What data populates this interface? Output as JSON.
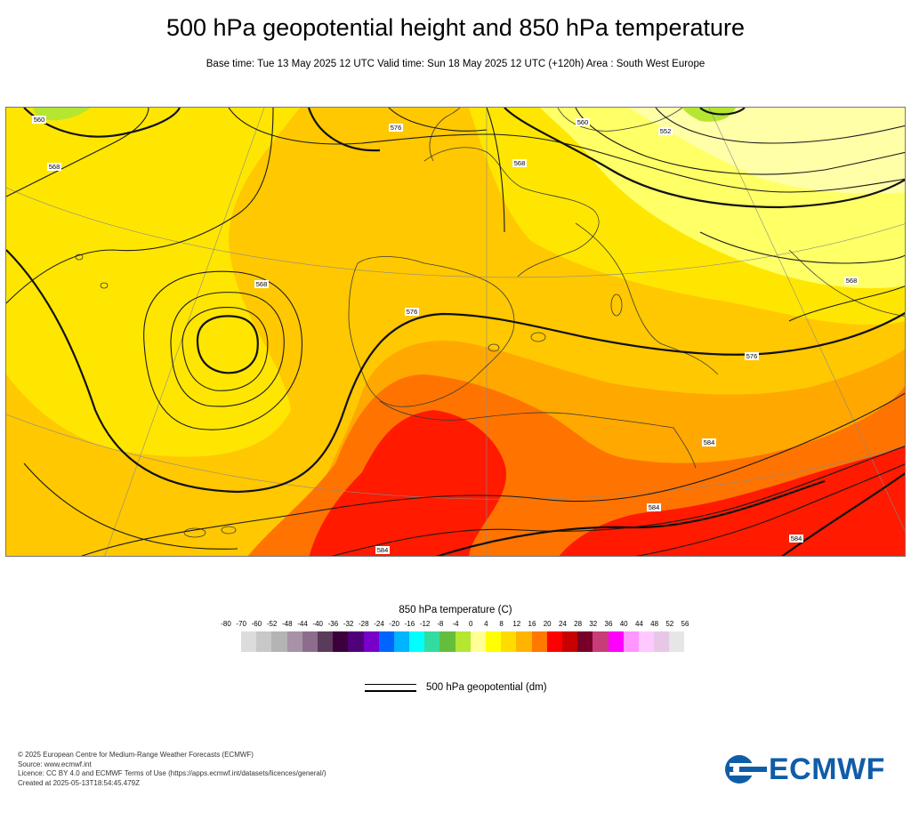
{
  "header": {
    "title": "500 hPa geopotential height and 850 hPa temperature",
    "subtitle": "Base time: Tue 13 May 2025 12 UTC Valid time: Sun 18 May 2025 12 UTC (+120h) Area : South West Europe"
  },
  "map": {
    "area": "South West Europe",
    "contour_labels": [
      "560",
      "568",
      "576",
      "576",
      "568",
      "584",
      "584",
      "552",
      "568",
      "576",
      "568",
      "584",
      "584",
      "560"
    ],
    "colors": {
      "t8_12": "#ffe600",
      "t12_16": "#ffc800",
      "t16_20": "#ffa800",
      "t20_24": "#ff7400",
      "t24_28": "#ff1a00",
      "t4_8": "#ffff66",
      "t0_4": "#ffffa8",
      "contour": "#1a1a1a"
    }
  },
  "legend": {
    "temperature_title": "850 hPa temperature (C)",
    "ticks": [
      "-80",
      "-70",
      "-60",
      "-52",
      "-48",
      "-44",
      "-40",
      "-36",
      "-32",
      "-28",
      "-24",
      "-20",
      "-16",
      "-12",
      "-8",
      "-4",
      "0",
      "4",
      "8",
      "12",
      "16",
      "20",
      "24",
      "28",
      "32",
      "36",
      "40",
      "44",
      "48",
      "52",
      "56"
    ],
    "colors": [
      "#dcdcdc",
      "#c8c8c8",
      "#b4b4b4",
      "#a892a8",
      "#8c6e8c",
      "#5a3c5a",
      "#3c003c",
      "#500078",
      "#7800c8",
      "#0064ff",
      "#00b4ff",
      "#00ffff",
      "#32dca0",
      "#64be3c",
      "#b4e632",
      "#ffff96",
      "#ffff00",
      "#ffdc00",
      "#ffb400",
      "#ff7800",
      "#ff0000",
      "#c80000",
      "#780028",
      "#c83c78",
      "#ff00ff",
      "#ff96ff",
      "#ffc8ff",
      "#e6c8e6",
      "#e6e6e6"
    ],
    "contour_label": "500 hPa geopotential (dm)"
  },
  "footer": {
    "line1": "© 2025 European Centre for Medium-Range Weather Forecasts (ECMWF)",
    "line2": "Source: www.ecmwf.int",
    "line3": "Licence: CC BY 4.0 and ECMWF Terms of Use (https://apps.ecmwf.int/datasets/licences/general/)",
    "line4": "Created at 2025-05-13T18:54:45.479Z"
  },
  "logo": {
    "text": "ECMWF",
    "color": "#0f5da8"
  }
}
